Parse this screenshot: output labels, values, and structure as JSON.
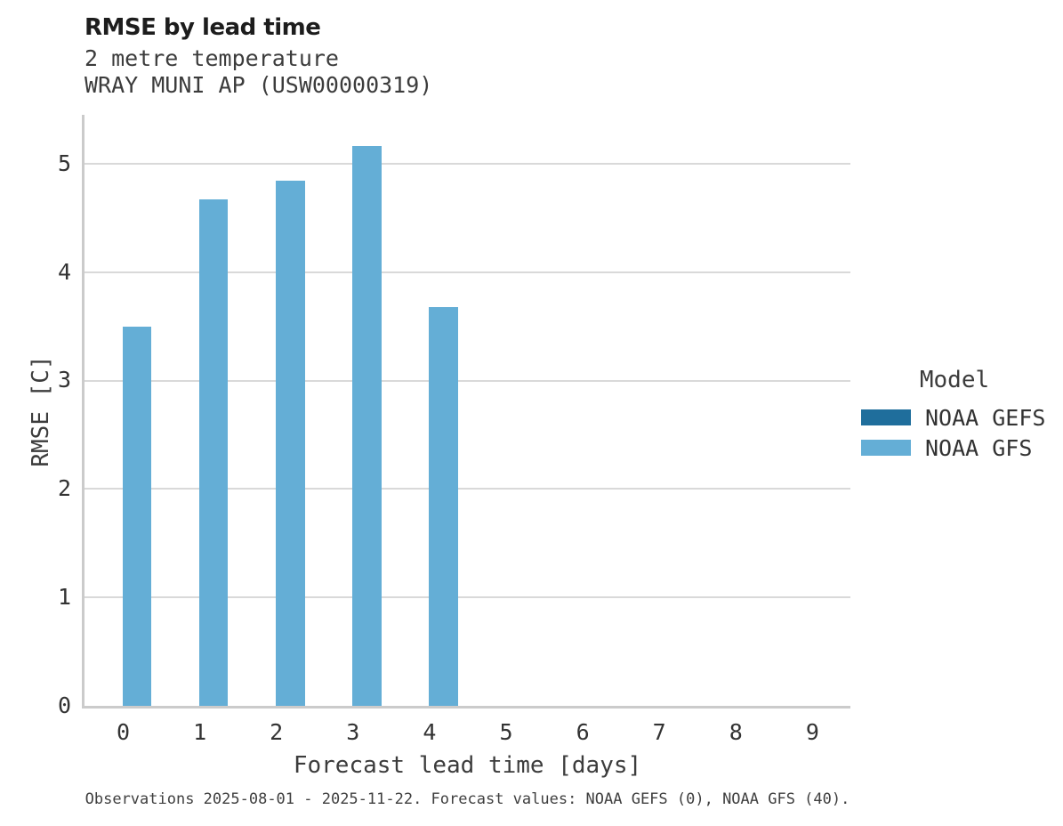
{
  "header": {
    "title": "RMSE by lead time",
    "subtitle_line1": "2 metre temperature",
    "subtitle_line2": "WRAY MUNI AP (USW00000319)"
  },
  "chart_data": {
    "type": "bar",
    "title": "RMSE by lead time",
    "subtitle": [
      "2 metre temperature",
      "WRAY MUNI AP (USW00000319)"
    ],
    "xlabel": "Forecast lead time [days]",
    "ylabel": "RMSE [C]",
    "categories": [
      "0",
      "1",
      "2",
      "3",
      "4",
      "5",
      "6",
      "7",
      "8",
      "9"
    ],
    "series": [
      {
        "name": "NOAA GEFS",
        "color": "#1f6e9c",
        "values": [
          null,
          null,
          null,
          null,
          null,
          null,
          null,
          null,
          null,
          null
        ]
      },
      {
        "name": "NOAA GFS",
        "color": "#64aed6",
        "values": [
          3.5,
          4.67,
          4.84,
          5.16,
          3.68,
          null,
          null,
          null,
          null,
          null
        ]
      }
    ],
    "ylim": [
      0,
      5.45
    ],
    "yticks": [
      0,
      1,
      2,
      3,
      4,
      5
    ],
    "grid": true,
    "legend_title": "Model",
    "legend_position": "right"
  },
  "legend": {
    "title": "Model",
    "entries": [
      {
        "label": "NOAA GEFS",
        "color": "#1f6e9c"
      },
      {
        "label": "NOAA GFS",
        "color": "#64aed6"
      }
    ]
  },
  "footer": {
    "note": "Observations 2025-08-01 - 2025-11-22. Forecast values: NOAA GEFS (0), NOAA GFS (40)."
  },
  "colors": {
    "bar_noaa_gefs": "#1f6e9c",
    "bar_noaa_gfs": "#64aed6",
    "gridline": "#d9d9d9",
    "axis": "#cbcbcb",
    "title_text": "#1d1d1d",
    "body_text": "#3c3c3c"
  }
}
